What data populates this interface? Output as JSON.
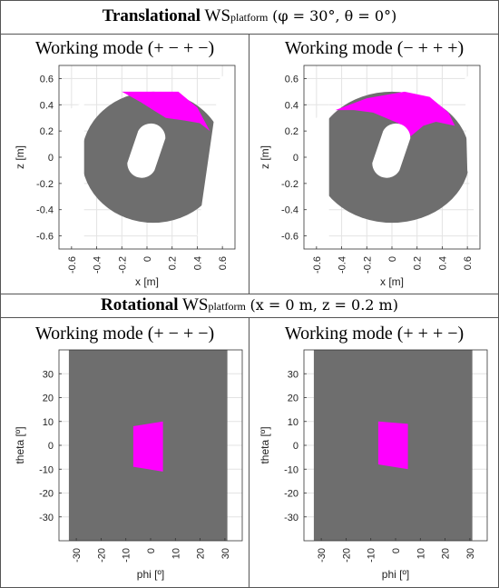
{
  "sections": [
    {
      "title_bold": "Translational",
      "title_ws": "WS",
      "title_sub": "platform",
      "title_params": "(φ = 30°, θ = 0°)"
    },
    {
      "title_bold": "Rotational",
      "title_ws": "WS",
      "title_sub": "platform",
      "title_params": "(x = 0 m, z = 0.2 m)"
    }
  ],
  "chart_data": [
    {
      "type": "heatmap",
      "title": "Working mode (+ − + −)",
      "xlabel": "x [m]",
      "ylabel": "z [m]",
      "xlim": [
        -0.7,
        0.7
      ],
      "ylim": [
        -0.7,
        0.7
      ],
      "xticks": [
        "-0.6",
        "-0.4",
        "-0.2",
        "0",
        "0.2",
        "0.4",
        "0.6"
      ],
      "yticks": [
        "0.6",
        "0.4",
        "0.2",
        "0",
        "-0.2",
        "-0.4",
        "-0.6"
      ],
      "grid": true,
      "regions": {
        "gray": "#6e6e6e",
        "magenta": "#ff00ff"
      }
    },
    {
      "type": "heatmap",
      "title": "Working mode (− + + +)",
      "xlabel": "x [m]",
      "ylabel": "z [m]",
      "xlim": [
        -0.7,
        0.7
      ],
      "ylim": [
        -0.7,
        0.7
      ],
      "xticks": [
        "-0.6",
        "-0.4",
        "-0.2",
        "0",
        "0.2",
        "0.4",
        "0.6"
      ],
      "yticks": [
        "0.6",
        "0.4",
        "0.2",
        "0",
        "-0.2",
        "-0.4",
        "-0.6"
      ],
      "grid": true,
      "regions": {
        "gray": "#6e6e6e",
        "magenta": "#ff00ff"
      }
    },
    {
      "type": "heatmap",
      "title": "Working mode (+ − + −)",
      "xlabel": "phi [º]",
      "ylabel": "theta [º]",
      "xlim": [
        -37,
        37
      ],
      "ylim": [
        -40,
        40
      ],
      "xticks": [
        "-30",
        "-20",
        "-10",
        "0",
        "10",
        "20",
        "30"
      ],
      "yticks": [
        "30",
        "20",
        "10",
        "0",
        "-10",
        "-20",
        "-30"
      ],
      "grid": true,
      "regions": {
        "gray": "#6e6e6e",
        "magenta": "#ff00ff"
      }
    },
    {
      "type": "heatmap",
      "title": "Working mode (+ + + −)",
      "xlabel": "phi [º]",
      "ylabel": "theta [º]",
      "xlim": [
        -37,
        37
      ],
      "ylim": [
        -40,
        40
      ],
      "xticks": [
        "-30",
        "-20",
        "-10",
        "0",
        "10",
        "20",
        "30"
      ],
      "yticks": [
        "30",
        "20",
        "10",
        "0",
        "-10",
        "-20",
        "-30"
      ],
      "grid": true,
      "regions": {
        "gray": "#6e6e6e",
        "magenta": "#ff00ff"
      }
    }
  ]
}
